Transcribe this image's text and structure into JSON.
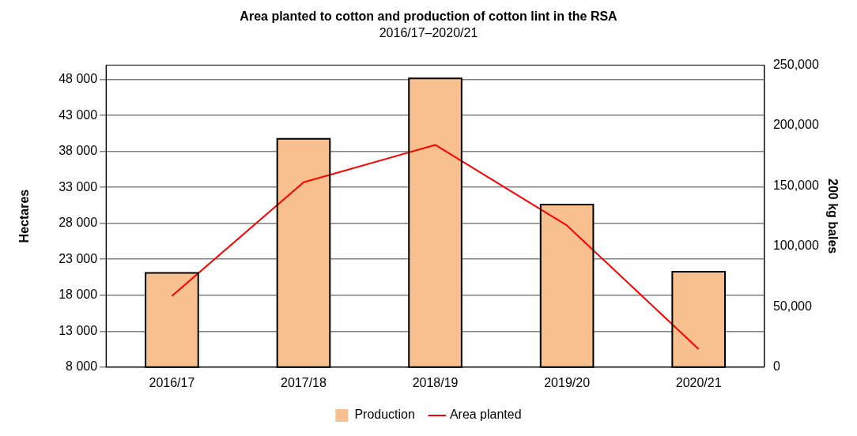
{
  "chart_data": {
    "type": "bar",
    "title": "Area planted to cotton and production of cotton lint in the RSA",
    "subtitle": "2016/17–2020/21",
    "ylabel": "Hectares",
    "y2label": "200 kg bales",
    "categories": [
      "2016/17",
      "2017/18",
      "2018/19",
      "2019/20",
      "2020/21"
    ],
    "series": [
      {
        "name": "Production",
        "axis": "y2",
        "color": "#f9c08f",
        "values": [
          78000,
          189000,
          239000,
          134500,
          79000
        ]
      },
      {
        "name": "Area planted",
        "type": "line",
        "axis": "y",
        "color": "#ff0000",
        "values": [
          17900,
          33700,
          38900,
          27700,
          10500
        ]
      }
    ],
    "ylim": [
      8000,
      50000
    ],
    "yticks": [
      {
        "value": 8000,
        "label": "8 000"
      },
      {
        "value": 13000,
        "label": "13 000"
      },
      {
        "value": 18000,
        "label": "18 000"
      },
      {
        "value": 23000,
        "label": "23 000"
      },
      {
        "value": 28000,
        "label": "28 000"
      },
      {
        "value": 33000,
        "label": "33 000"
      },
      {
        "value": 38000,
        "label": "38 000"
      },
      {
        "value": 43000,
        "label": "43 000"
      },
      {
        "value": 48000,
        "label": "48 000"
      }
    ],
    "y2lim": [
      0,
      250000
    ],
    "y2ticks": [
      0,
      {
        "value": 50000,
        "label": "50,000"
      },
      {
        "value": 100000,
        "label": "100,000"
      },
      {
        "value": 150000,
        "label": "150,000"
      },
      {
        "value": 200000,
        "label": "200,000"
      },
      {
        "value": 250000,
        "label": "250,000"
      }
    ],
    "grid": "y",
    "legend": "bottom",
    "marker": "none",
    "line_style": "solid"
  }
}
